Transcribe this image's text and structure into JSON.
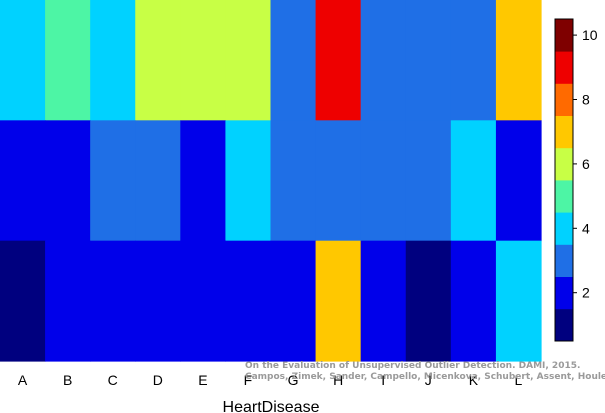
{
  "chart_data": {
    "type": "heatmap",
    "xlabel": "HeartDisease",
    "categories": [
      "A",
      "B",
      "C",
      "D",
      "E",
      "F",
      "G",
      "H",
      "I",
      "J",
      "K",
      "L"
    ],
    "rows": 3,
    "values": [
      [
        4,
        5,
        4,
        6,
        6,
        6,
        3,
        9,
        3,
        3,
        3,
        7
      ],
      [
        2,
        2,
        3,
        3,
        2,
        4,
        3,
        3,
        3,
        3,
        4,
        2
      ],
      [
        1,
        2,
        2,
        2,
        2,
        2,
        2,
        7,
        2,
        1,
        2,
        4
      ]
    ],
    "colorbar": {
      "ticks": [
        2,
        4,
        6,
        8,
        10
      ],
      "levels": [
        1,
        2,
        3,
        4,
        5,
        6,
        7,
        8,
        9,
        10
      ],
      "colors": [
        "#00007f",
        "#0000ea",
        "#1f6fe6",
        "#00d2ff",
        "#4df5a5",
        "#c8ff45",
        "#ffc800",
        "#ff6a00",
        "#ee0000",
        "#7f0000"
      ]
    },
    "grid": false
  },
  "credit": {
    "line1": "On the Evaluation of Unsupervised Outlier Detection. DAMI, 2015.",
    "line2": "Campos, Zimek, Sander, Campello, Micenkova, Schubert, Assent, Houle"
  }
}
